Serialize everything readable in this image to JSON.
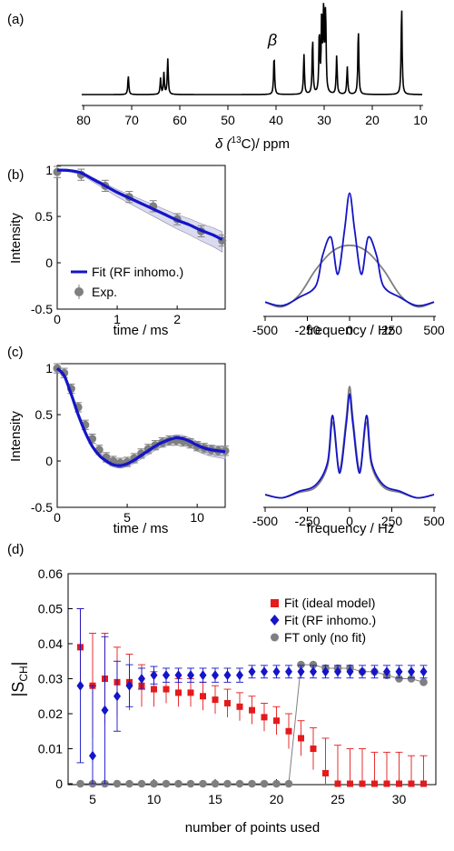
{
  "panels": {
    "a": {
      "label": "(a)",
      "xlabel_pre": "δ (",
      "xlabel_sup": "13",
      "xlabel_post": "C)/ ppm",
      "annotation": "β",
      "xticks": [
        "80",
        "70",
        "60",
        "50",
        "40",
        "30",
        "20",
        "10"
      ]
    },
    "b": {
      "label": "(b)",
      "ylabel": "Intensity",
      "xlabel": "time / ms",
      "yticks": [
        "1",
        "0.5",
        "0",
        "-0.5"
      ],
      "xticks": [
        "0",
        "1",
        "2"
      ],
      "legend": [
        "Fit (RF inhomo.)",
        "Exp."
      ],
      "spec_xlabel": "frequency / Hz",
      "spec_xticks": [
        "-500",
        "-250",
        "0",
        "250",
        "500"
      ]
    },
    "c": {
      "label": "(c)",
      "ylabel": "Intensity",
      "xlabel": "time / ms",
      "yticks": [
        "1",
        "0.5",
        "0",
        "-0.5"
      ],
      "xticks": [
        "0",
        "5",
        "10"
      ],
      "spec_xlabel": "frequency / Hz",
      "spec_xticks": [
        "-500",
        "-250",
        "0",
        "250",
        "500"
      ]
    },
    "d": {
      "label": "(d)",
      "ylabel_main": "|S",
      "ylabel_sub": "CH",
      "ylabel_end": "|",
      "xlabel": "number of points used",
      "yticks": [
        "0.06",
        "0.05",
        "0.04",
        "0.03",
        "0.02",
        "0.01",
        "0"
      ],
      "xticks": [
        "5",
        "10",
        "15",
        "20",
        "25",
        "30"
      ],
      "legend": [
        "Fit (ideal model)",
        "Fit (RF inhomo.)",
        "FT only (no fit)"
      ]
    }
  },
  "colors": {
    "fit": "#1414c8",
    "exp": "#7f7f7f",
    "ideal": "#e41a1c",
    "band": "#b8b8e0"
  },
  "chart_data": [
    {
      "type": "line",
      "title": "(a)",
      "xlabel": "δ (13C)/ ppm",
      "xlim": [
        80,
        10
      ],
      "series": [
        {
          "x": [
            70.7,
            64.0,
            63.3,
            62.5,
            40.4,
            34.2,
            32.4,
            31.0,
            30.5,
            30.1,
            29.7,
            27.4,
            25.2,
            22.9,
            13.9
          ],
          "values": [
            0.21,
            0.18,
            0.24,
            0.4,
            0.44,
            0.45,
            0.62,
            0.68,
            0.88,
            0.95,
            0.93,
            0.43,
            0.31,
            0.74,
            1.0
          ]
        }
      ]
    },
    {
      "type": "line",
      "title": "(b)",
      "xlabel": "time / ms",
      "ylabel": "Intensity",
      "xlim": [
        0,
        2.8
      ],
      "ylim": [
        -0.5,
        1.05
      ],
      "series": [
        {
          "name": "Fit (RF inhomo.)",
          "x": [
            0,
            0.2,
            0.4,
            0.6,
            0.8,
            1.0,
            1.2,
            1.4,
            1.6,
            1.8,
            2.0,
            2.2,
            2.4,
            2.6,
            2.75
          ],
          "values": [
            1.0,
            0.995,
            0.97,
            0.9,
            0.83,
            0.76,
            0.7,
            0.64,
            0.58,
            0.52,
            0.46,
            0.41,
            0.35,
            0.3,
            0.25
          ]
        },
        {
          "name": "Exp.",
          "x": [
            0,
            0.4,
            0.8,
            1.2,
            1.6,
            2.0,
            2.4,
            2.75
          ],
          "values": [
            0.98,
            0.95,
            0.83,
            0.71,
            0.61,
            0.47,
            0.34,
            0.24
          ],
          "err": [
            0.06,
            0.06,
            0.06,
            0.06,
            0.06,
            0.06,
            0.06,
            0.06
          ]
        }
      ]
    },
    {
      "type": "line",
      "title": "(b) spectrum",
      "xlabel": "frequency / Hz",
      "xlim": [
        -500,
        500
      ],
      "series": [
        {
          "name": "Fit (RF inhomo.)",
          "x": [
            -500,
            -400,
            -300,
            -200,
            -160,
            -110,
            -70,
            -30,
            0,
            30,
            70,
            110,
            160,
            200,
            300,
            400,
            500
          ],
          "values": [
            0.06,
            0.03,
            0.1,
            0.2,
            0.46,
            0.62,
            0.3,
            0.68,
            1.0,
            0.68,
            0.3,
            0.62,
            0.46,
            0.2,
            0.1,
            0.03,
            0.06
          ]
        },
        {
          "name": "exp",
          "x": [
            -500,
            -400,
            -300,
            -200,
            -100,
            0,
            100,
            200,
            300,
            400,
            500
          ],
          "values": [
            0.06,
            0.02,
            0.12,
            0.34,
            0.5,
            0.55,
            0.5,
            0.34,
            0.12,
            0.02,
            0.06
          ]
        }
      ]
    },
    {
      "type": "line",
      "title": "(c)",
      "xlabel": "time / ms",
      "ylabel": "Intensity",
      "xlim": [
        0,
        12
      ],
      "ylim": [
        -0.5,
        1.05
      ],
      "series": [
        {
          "name": "Fit (RF inhomo.)",
          "x": [
            0,
            0.5,
            1,
            1.5,
            2,
            2.5,
            3,
            3.5,
            4,
            4.5,
            5,
            5.5,
            6,
            6.5,
            7,
            7.5,
            8,
            8.5,
            9,
            9.5,
            10,
            10.5,
            11,
            11.5,
            12
          ],
          "values": [
            1.0,
            0.92,
            0.72,
            0.5,
            0.31,
            0.16,
            0.06,
            0.0,
            -0.04,
            -0.05,
            -0.03,
            0.01,
            0.06,
            0.11,
            0.16,
            0.2,
            0.23,
            0.25,
            0.24,
            0.21,
            0.17,
            0.14,
            0.12,
            0.11,
            0.1
          ]
        },
        {
          "name": "Exp.",
          "x": [
            0,
            0.5,
            1,
            1.5,
            2,
            2.5,
            3,
            3.5,
            4,
            4.5,
            5,
            5.5,
            6,
            6.5,
            7,
            7.5,
            8,
            8.5,
            9,
            9.5,
            10,
            10.5,
            11,
            11.5,
            12
          ],
          "values": [
            1.0,
            0.95,
            0.78,
            0.58,
            0.39,
            0.24,
            0.12,
            0.04,
            0.0,
            -0.02,
            -0.01,
            0.03,
            0.08,
            0.13,
            0.17,
            0.2,
            0.22,
            0.22,
            0.21,
            0.19,
            0.16,
            0.14,
            0.12,
            0.11,
            0.11
          ],
          "err": [
            0.05,
            0.05,
            0.05,
            0.05,
            0.05,
            0.05,
            0.05,
            0.05,
            0.05,
            0.05,
            0.05,
            0.05,
            0.05,
            0.05,
            0.05,
            0.05,
            0.05,
            0.05,
            0.05,
            0.05,
            0.05,
            0.05,
            0.05,
            0.05,
            0.05
          ]
        }
      ]
    },
    {
      "type": "line",
      "title": "(c) spectrum",
      "xlabel": "frequency / Hz",
      "xlim": [
        -500,
        500
      ],
      "series": [
        {
          "name": "Fit (RF inhomo.)",
          "x": [
            -500,
            -400,
            -300,
            -200,
            -130,
            -100,
            -60,
            -20,
            0,
            20,
            60,
            100,
            130,
            200,
            300,
            400,
            500
          ],
          "values": [
            0.05,
            0.02,
            0.08,
            0.14,
            0.35,
            0.78,
            0.25,
            0.7,
            0.98,
            0.7,
            0.25,
            0.78,
            0.35,
            0.14,
            0.08,
            0.02,
            0.05
          ]
        },
        {
          "name": "exp",
          "x": [
            -500,
            -400,
            -300,
            -200,
            -130,
            -100,
            -60,
            -20,
            0,
            20,
            60,
            100,
            130,
            200,
            300,
            400,
            500
          ],
          "values": [
            0.05,
            0.02,
            0.07,
            0.12,
            0.32,
            0.72,
            0.28,
            0.75,
            1.05,
            0.75,
            0.28,
            0.72,
            0.32,
            0.12,
            0.07,
            0.02,
            0.05
          ]
        }
      ]
    },
    {
      "type": "scatter",
      "title": "(d)",
      "xlabel": "number of points used",
      "ylabel": "|S_CH|",
      "xlim": [
        3,
        33
      ],
      "ylim": [
        0,
        0.06
      ],
      "x": [
        4,
        5,
        6,
        7,
        8,
        9,
        10,
        11,
        12,
        13,
        14,
        15,
        16,
        17,
        18,
        19,
        20,
        21,
        22,
        23,
        24,
        25,
        26,
        27,
        28,
        29,
        30,
        31,
        32
      ],
      "series": [
        {
          "name": "Fit (ideal model)",
          "values": [
            0.039,
            0.028,
            0.03,
            0.029,
            0.029,
            0.028,
            0.027,
            0.027,
            0.026,
            0.026,
            0.025,
            0.024,
            0.023,
            0.022,
            0.021,
            0.019,
            0.018,
            0.015,
            0.013,
            0.01,
            0.003,
            0.0,
            0.0,
            0.0,
            0.0,
            0.0,
            0.0,
            0.0,
            0.0
          ],
          "err_up": [
            0.011,
            0.015,
            0.013,
            0.01,
            0.008,
            0.006,
            0.005,
            0.004,
            0.004,
            0.004,
            0.004,
            0.004,
            0.004,
            0.004,
            0.004,
            0.004,
            0.004,
            0.005,
            0.005,
            0.006,
            0.01,
            0.011,
            0.01,
            0.01,
            0.009,
            0.009,
            0.009,
            0.008,
            0.008
          ],
          "err_down": [
            0.011,
            0.015,
            0.013,
            0.01,
            0.008,
            0.006,
            0.005,
            0.004,
            0.004,
            0.004,
            0.004,
            0.004,
            0.004,
            0.004,
            0.004,
            0.004,
            0.004,
            0.005,
            0.005,
            0.006,
            0.003,
            0.0,
            0.0,
            0.0,
            0.0,
            0.0,
            0.0,
            0.0,
            0.0
          ]
        },
        {
          "name": "Fit (RF inhomo.)",
          "values": [
            0.028,
            0.008,
            0.021,
            0.025,
            0.028,
            0.03,
            0.031,
            0.031,
            0.031,
            0.031,
            0.031,
            0.031,
            0.031,
            0.031,
            0.032,
            0.032,
            0.032,
            0.032,
            0.032,
            0.032,
            0.032,
            0.032,
            0.032,
            0.032,
            0.032,
            0.032,
            0.032,
            0.032,
            0.032
          ],
          "err": [
            0.022,
            0.02,
            0.021,
            0.01,
            0.006,
            0.003,
            0.0025,
            0.002,
            0.002,
            0.002,
            0.002,
            0.002,
            0.002,
            0.002,
            0.0018,
            0.0018,
            0.0018,
            0.0018,
            0.0018,
            0.0018,
            0.0018,
            0.0018,
            0.0018,
            0.0018,
            0.0018,
            0.0018,
            0.0018,
            0.0018,
            0.0018
          ]
        },
        {
          "name": "FT only (no fit)",
          "values": [
            0,
            0,
            0,
            0,
            0,
            0,
            0,
            0,
            0,
            0,
            0,
            0,
            0,
            0,
            0,
            0,
            0,
            0,
            0.034,
            0.034,
            0.033,
            0.033,
            0.033,
            0.032,
            0.032,
            0.031,
            0.03,
            0.03,
            0.029
          ]
        }
      ]
    }
  ]
}
